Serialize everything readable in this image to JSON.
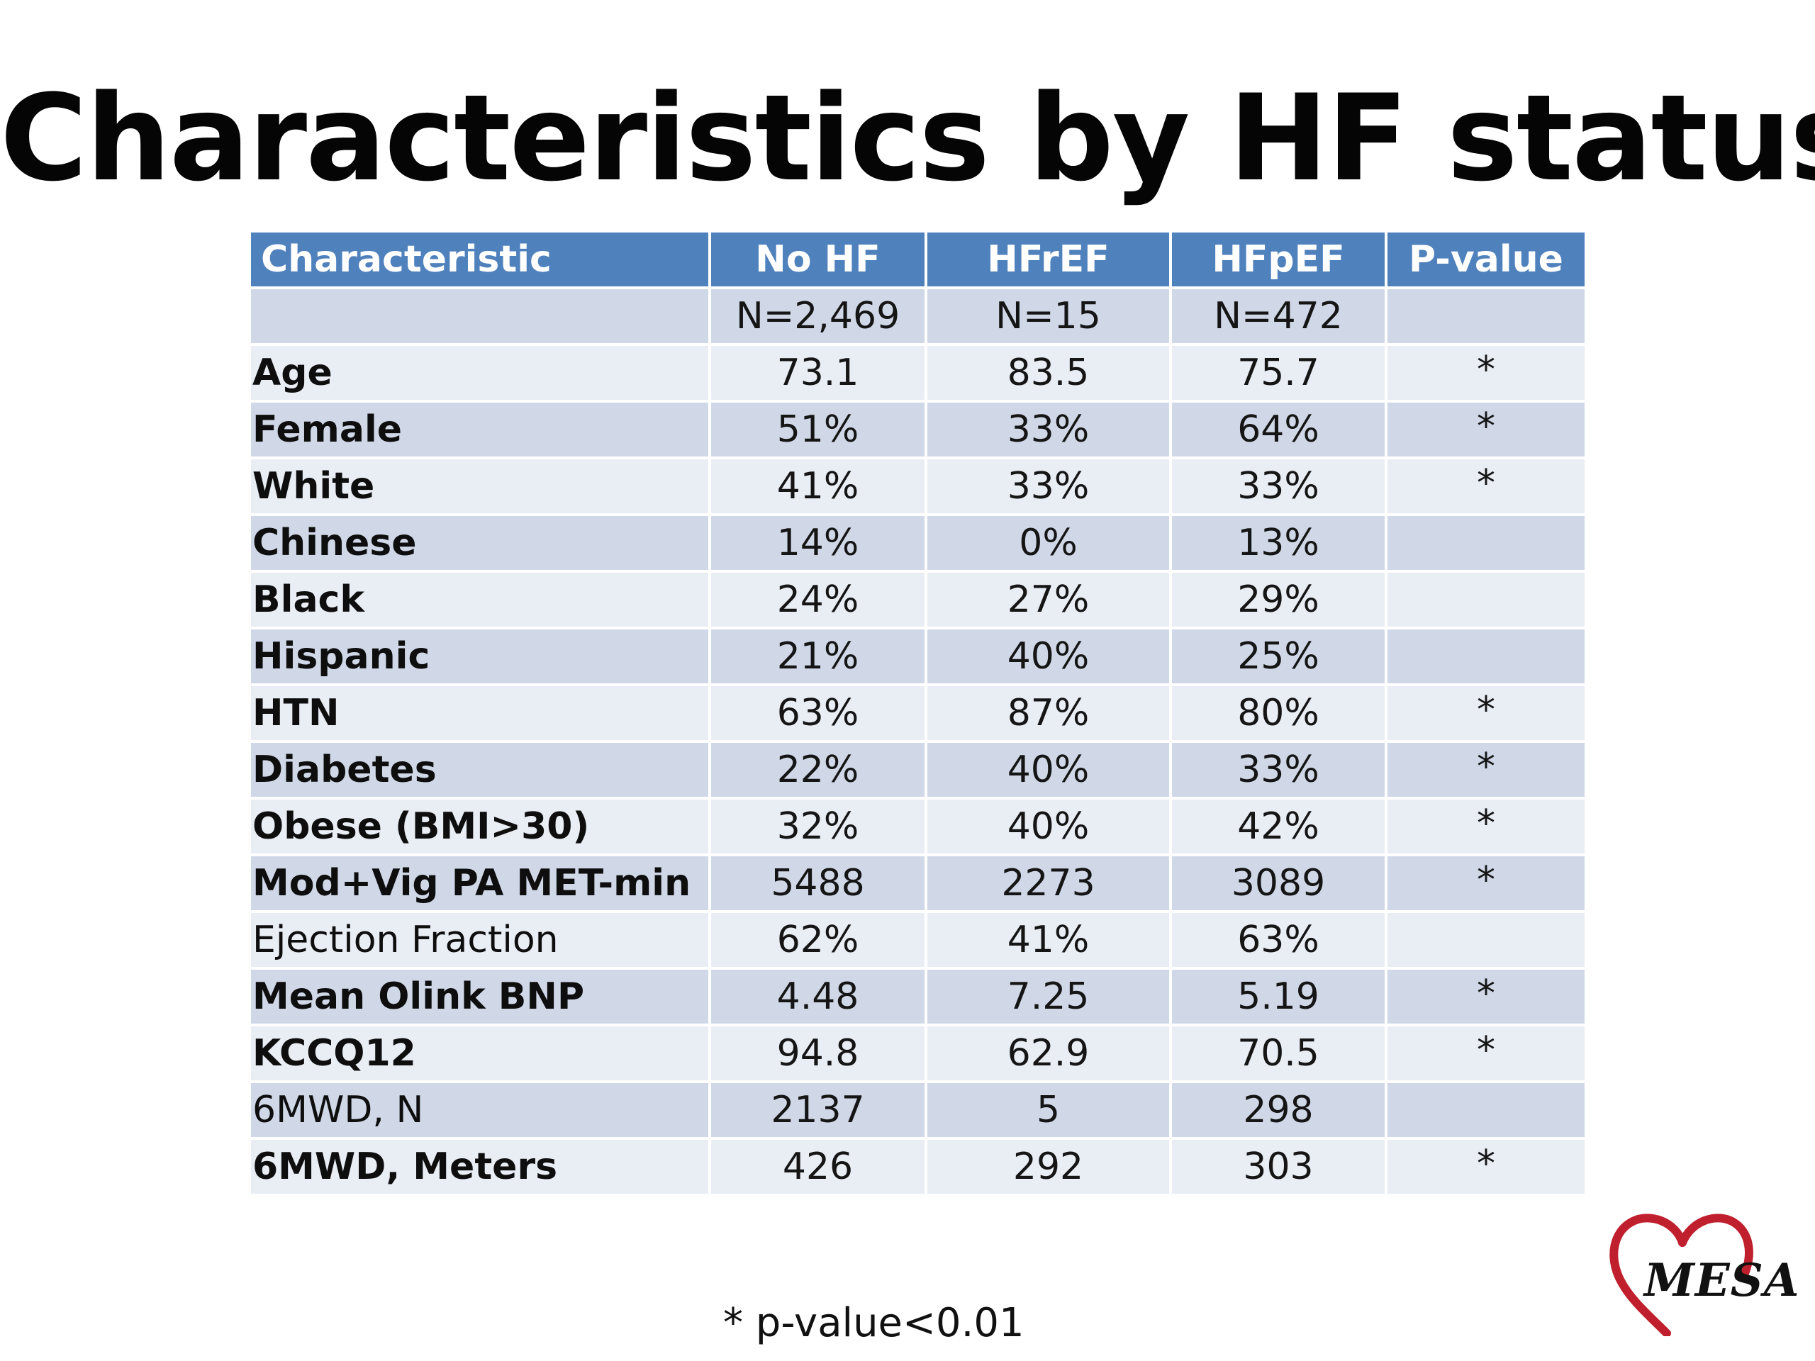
{
  "slide": {
    "title": "Characteristics by HF status",
    "footnote": "* p-value<0.01",
    "logo_text": "MESA"
  },
  "table": {
    "columns": [
      "Characteristic",
      "No HF",
      "HFrEF",
      "HFpEF",
      "P-value"
    ],
    "rows": [
      {
        "label": "",
        "values": [
          "N=2,469",
          "N=15",
          "N=472"
        ],
        "p": ""
      },
      {
        "label": "Age",
        "values": [
          "73.1",
          "83.5",
          "75.7"
        ],
        "p": "*"
      },
      {
        "label": "Female",
        "values": [
          "51%",
          "33%",
          "64%"
        ],
        "p": "*"
      },
      {
        "label": "White",
        "values": [
          "41%",
          "33%",
          "33%"
        ],
        "p": "*"
      },
      {
        "label": "Chinese",
        "values": [
          "14%",
          "0%",
          "13%"
        ],
        "p": ""
      },
      {
        "label": "Black",
        "values": [
          "24%",
          "27%",
          "29%"
        ],
        "p": ""
      },
      {
        "label": "Hispanic",
        "values": [
          "21%",
          "40%",
          "25%"
        ],
        "p": ""
      },
      {
        "label": "HTN",
        "values": [
          "63%",
          "87%",
          "80%"
        ],
        "p": "*"
      },
      {
        "label": "Diabetes",
        "values": [
          "22%",
          "40%",
          "33%"
        ],
        "p": "*"
      },
      {
        "label": "Obese (BMI>30)",
        "values": [
          "32%",
          "40%",
          "42%"
        ],
        "p": "*"
      },
      {
        "label": "Mod+Vig PA MET-min",
        "values": [
          "5488",
          "2273",
          "3089"
        ],
        "p": "*"
      },
      {
        "label": "Ejection Fraction",
        "values": [
          "62%",
          "41%",
          "63%"
        ],
        "p": ""
      },
      {
        "label": "Mean Olink BNP",
        "values": [
          "4.48",
          "7.25",
          "5.19"
        ],
        "p": "*"
      },
      {
        "label": "KCCQ12",
        "values": [
          "94.8",
          "62.9",
          "70.5"
        ],
        "p": "*"
      },
      {
        "label": "6MWD, N",
        "values": [
          "2137",
          "5",
          "298"
        ],
        "p": ""
      },
      {
        "label": "6MWD, Meters",
        "values": [
          "426",
          "292",
          "303"
        ],
        "p": "*"
      }
    ]
  },
  "colors": {
    "header_bg": "#4f81bd",
    "row_odd": "#d0d8e8",
    "row_even": "#e9edf4",
    "logo_heart": "#c0202e"
  },
  "icons": {
    "logo": "mesa-heart-logo"
  }
}
